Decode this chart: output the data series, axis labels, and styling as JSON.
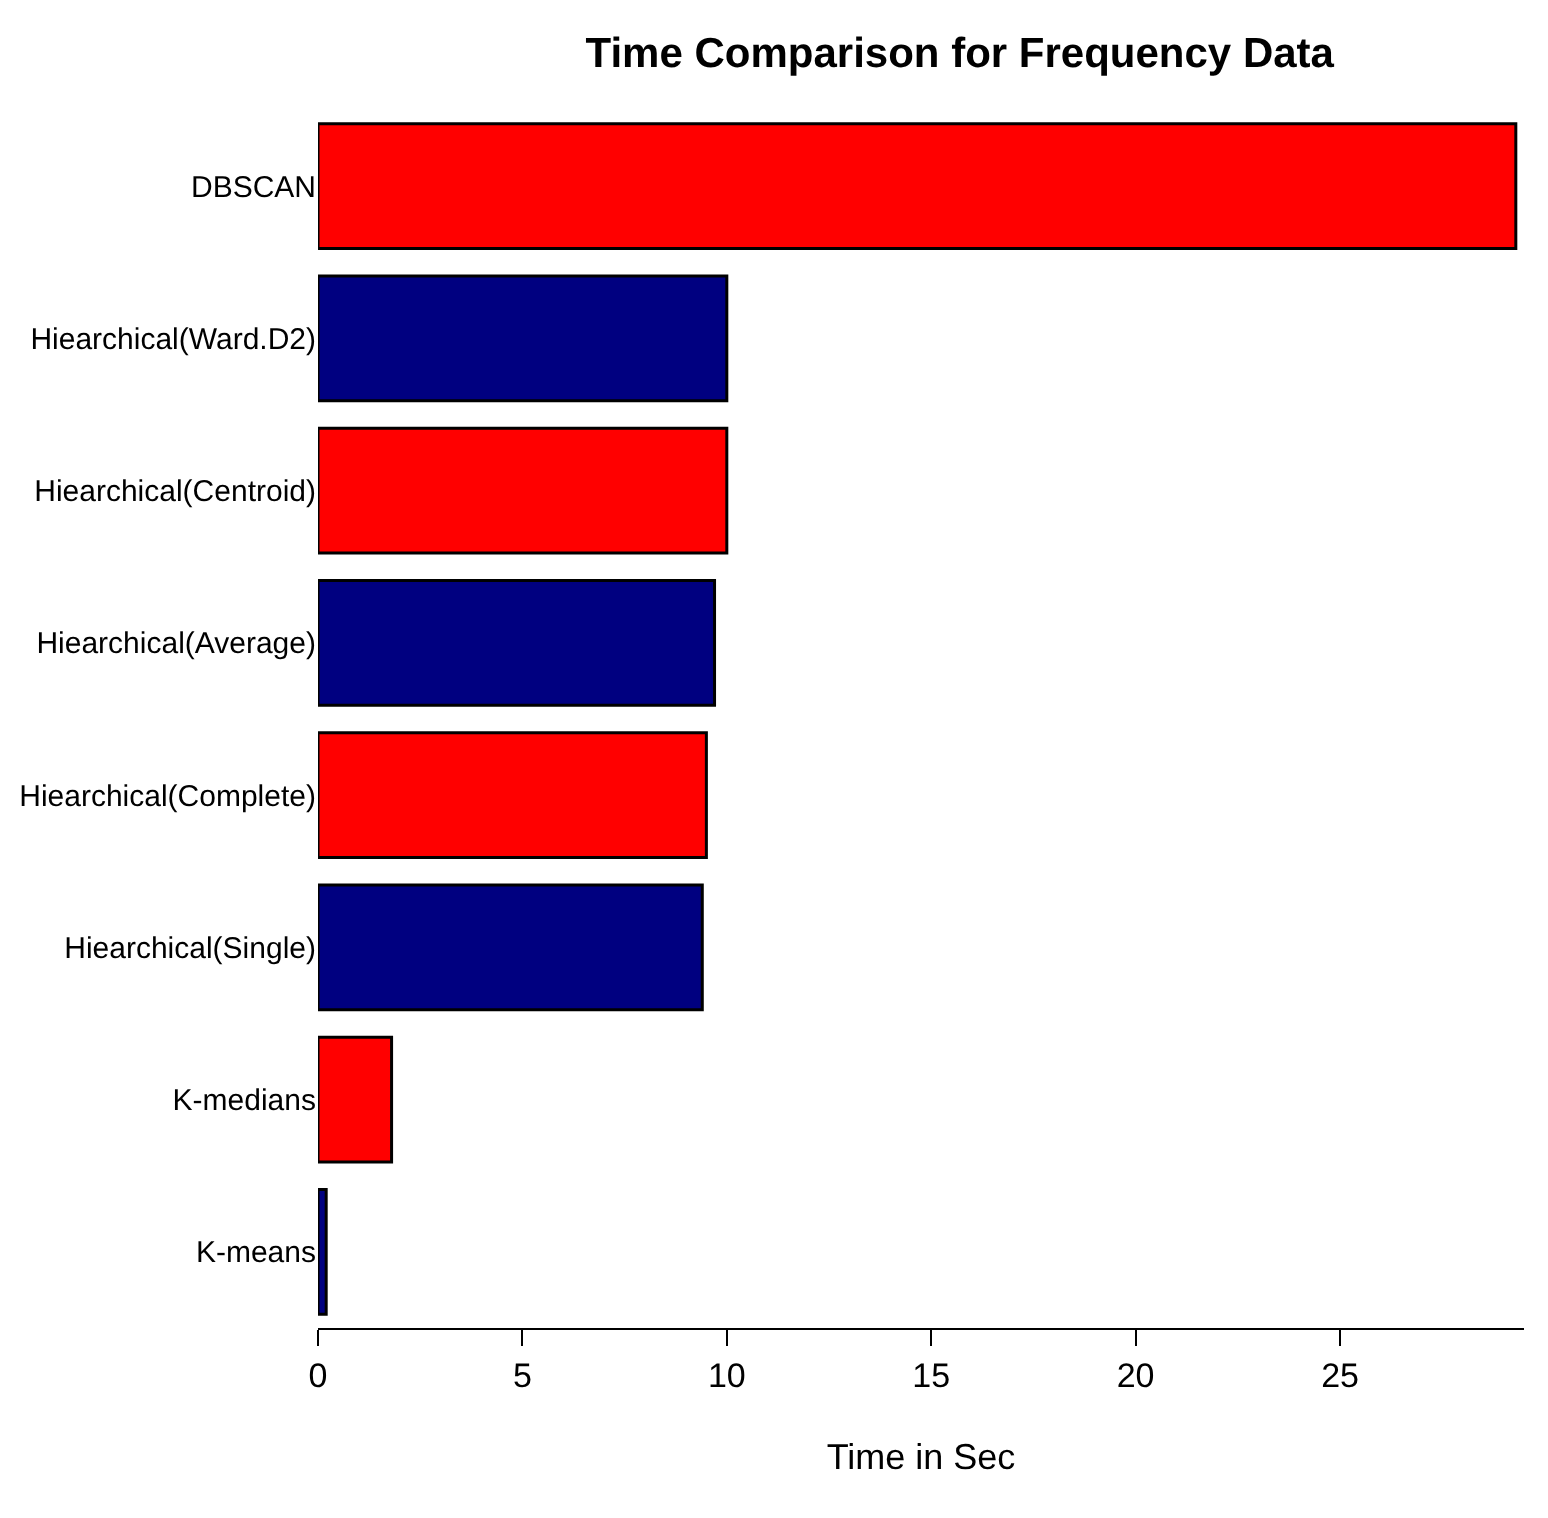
{
  "chart_data": {
    "type": "bar",
    "orientation": "horizontal",
    "title": "Time Comparison for Frequency Data",
    "xlabel": "Time in Sec",
    "categories": [
      "DBSCAN",
      "Hiearchical(Ward.D2)",
      "Hiearchical(Centroid)",
      "Hiearchical(Average)",
      "Hiearchical(Complete)",
      "Hiearchical(Single)",
      "K-medians",
      "K-means"
    ],
    "values": [
      29.3,
      10.0,
      10.0,
      9.7,
      9.5,
      9.4,
      1.8,
      0.2
    ],
    "colors": [
      "#ff0000",
      "#000080",
      "#ff0000",
      "#000080",
      "#ff0000",
      "#000080",
      "#ff0000",
      "#000080"
    ],
    "xlim": [
      0,
      29.5
    ],
    "xticks": [
      0,
      5,
      10,
      15,
      20,
      25
    ]
  }
}
